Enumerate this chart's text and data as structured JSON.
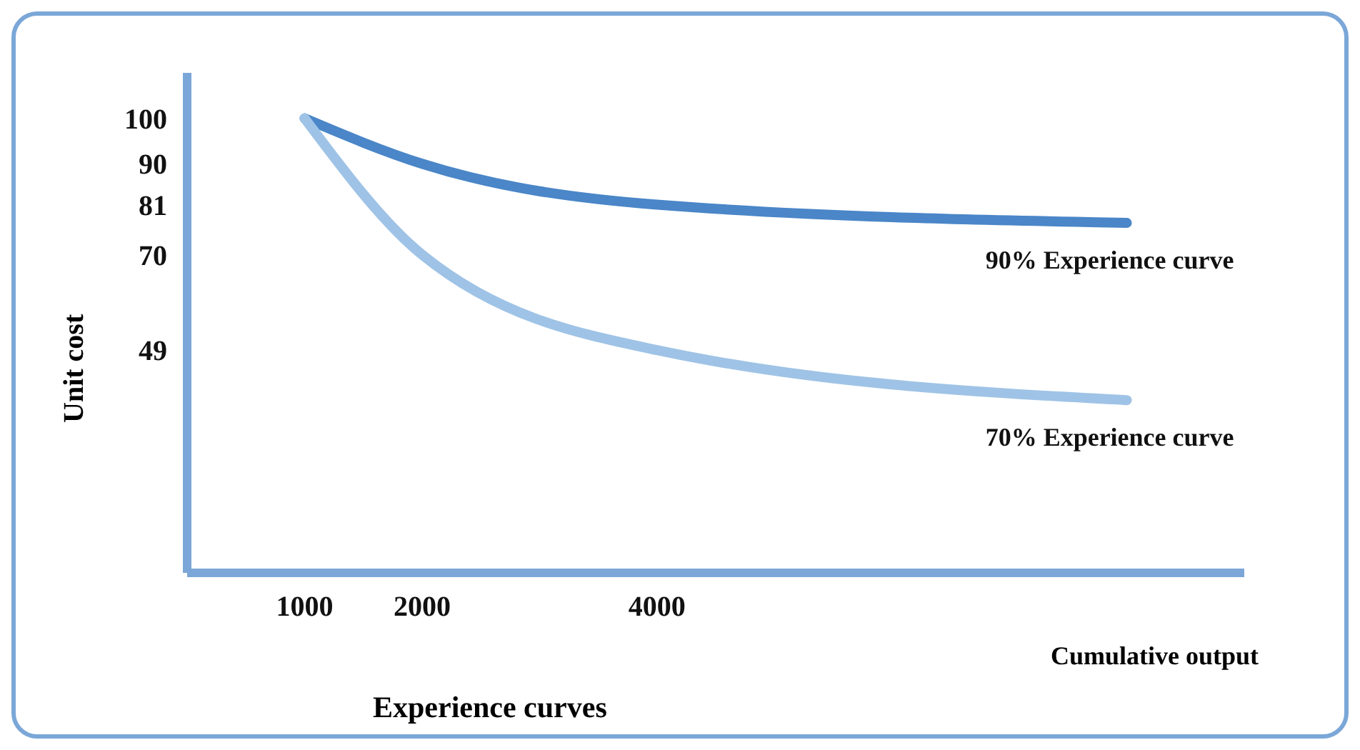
{
  "chart_data": {
    "type": "line",
    "title": "Experience curves",
    "xlabel": "Cumulative output",
    "ylabel": "Unit cost",
    "x": [
      1000,
      2000,
      4000,
      8000
    ],
    "series": [
      {
        "name": "90% Experience curve",
        "color": "#4a86c8",
        "values": [
          100,
          90,
          81,
          77
        ]
      },
      {
        "name": "70% Experience curve",
        "color": "#9fc3e6",
        "values": [
          100,
          70,
          49,
          38
        ]
      }
    ],
    "xlim": [
      0,
      9000
    ],
    "xticks": [
      1000,
      2000,
      4000
    ],
    "ylim": [
      0,
      110
    ],
    "yticks": [
      49,
      70,
      81,
      90,
      100
    ],
    "grid": false,
    "legend": false,
    "marker": "none",
    "line_style": "solid"
  }
}
